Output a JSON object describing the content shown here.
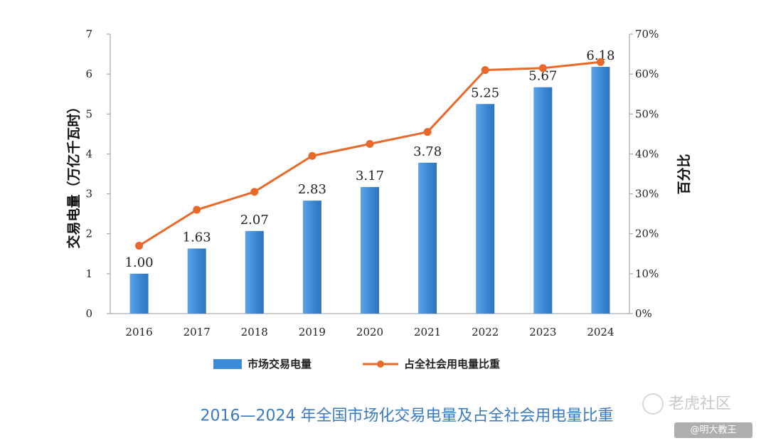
{
  "chart_data": {
    "type": "bar+line",
    "title": "2016—2024 年全国市场化交易电量及占全社会用电量比重",
    "categories": [
      "2016",
      "2017",
      "2018",
      "2019",
      "2020",
      "2021",
      "2022",
      "2023",
      "2024"
    ],
    "series": [
      {
        "name": "市场交易电量",
        "type": "bar",
        "axis": "left",
        "values": [
          1.0,
          1.63,
          2.07,
          2.83,
          3.17,
          3.78,
          5.25,
          5.67,
          6.18
        ],
        "labels": [
          "1.00",
          "1.63",
          "2.07",
          "2.83",
          "3.17",
          "3.78",
          "5.25",
          "5.67",
          "6.18"
        ],
        "color": "#3d8ad6"
      },
      {
        "name": "占全社会用电量比重",
        "type": "line",
        "axis": "right",
        "values": [
          17,
          26,
          30.5,
          39.5,
          42.5,
          45.5,
          61,
          61.5,
          63
        ],
        "color": "#e8692a"
      }
    ],
    "ylabel": "交易电量（万亿千瓦时）",
    "y2label": "百分比",
    "ylim": [
      0,
      7
    ],
    "y2lim": [
      0,
      70
    ],
    "yticks": [
      "0",
      "1",
      "2",
      "3",
      "4",
      "5",
      "6",
      "7"
    ],
    "y2ticks": [
      "0%",
      "10%",
      "20%",
      "30%",
      "40%",
      "50%",
      "60%",
      "70%"
    ],
    "legend_position": "bottom",
    "grid": false
  },
  "watermark": {
    "main": "老虎社区",
    "sub": "@明大教王"
  }
}
